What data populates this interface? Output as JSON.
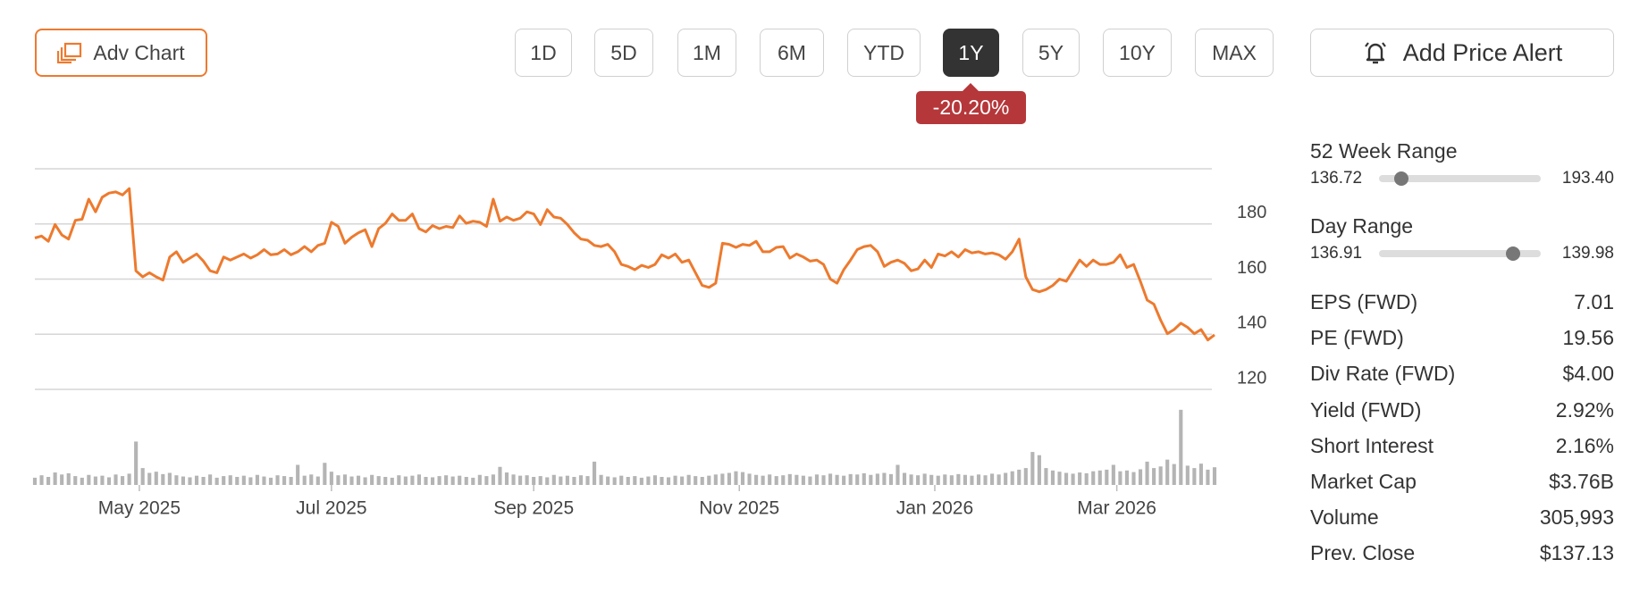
{
  "toolbar": {
    "adv_chart": "Adv Chart",
    "periods": [
      "1D",
      "5D",
      "1M",
      "6M",
      "YTD",
      "1Y",
      "5Y",
      "10Y",
      "MAX"
    ],
    "active_period": "1Y",
    "change": "-20.20%",
    "price_alert": "Add Price Alert"
  },
  "chart_data": {
    "type": "line",
    "series": [
      {
        "color": "#ed7a2e",
        "values": [
          174.9,
          175.6,
          173.7,
          179.8,
          176,
          174.5,
          181.3,
          181.7,
          189,
          184.4,
          189.7,
          191.2,
          191.6,
          190.5,
          192.8,
          163,
          160.8,
          162.3,
          160.8,
          159.6,
          168,
          169.9,
          166.1,
          167.6,
          169.1,
          166.5,
          163,
          162.3,
          168,
          166.9,
          168,
          169.1,
          167.6,
          168.8,
          170.7,
          168.8,
          169.1,
          170.7,
          168.8,
          169.9,
          171.8,
          169.9,
          172.2,
          173,
          180.6,
          179.1,
          173,
          175.2,
          176.8,
          177.9,
          171.8,
          178.3,
          180.2,
          183.6,
          181.3,
          181.3,
          183.6,
          178.3,
          177.1,
          179.4,
          178.3,
          179.1,
          178.7,
          182.9,
          180.2,
          181,
          180.6,
          179.1,
          189,
          181,
          182.5,
          181.3,
          182.1,
          184.4,
          183.6,
          179.8,
          185.2,
          182.5,
          182.1,
          179.8,
          176.8,
          174.5,
          174.1,
          172.2,
          171.8,
          172.6,
          169.9,
          165.3,
          164.6,
          163.4,
          165,
          164.2,
          165.3,
          168.8,
          167.6,
          169.1,
          166.1,
          166.9,
          162.3,
          157.7,
          157,
          158.5,
          173,
          172.6,
          171.5,
          172.6,
          172.2,
          173.7,
          169.9,
          169.9,
          171.5,
          171.8,
          167.6,
          169.1,
          168,
          166.5,
          166.9,
          165.3,
          160,
          158.5,
          163.4,
          166.9,
          170.7,
          171.8,
          172.2,
          169.9,
          164.6,
          166.1,
          166.9,
          165.7,
          163,
          163.7,
          166.9,
          164.2,
          169.1,
          168.4,
          169.9,
          168,
          170.7,
          169.5,
          169.9,
          169.1,
          169.5,
          168.8,
          167.2,
          169.9,
          174.5,
          160.8,
          156.2,
          155.4,
          156.2,
          157.7,
          160,
          159.2,
          163,
          166.9,
          164.6,
          166.9,
          165.3,
          165.3,
          166.1,
          168.8,
          164.2,
          165.3,
          159.2,
          152.4,
          150.9,
          145.1,
          140.2,
          141.7,
          144,
          142.5,
          140.2,
          141.7,
          137.9,
          139.8
        ]
      },
      {
        "color": "#b4b4b4",
        "axis": "y2",
        "values": [
          180000,
          240000,
          200000,
          310000,
          260000,
          290000,
          220000,
          180000,
          250000,
          210000,
          230000,
          190000,
          260000,
          220000,
          280000,
          1080000,
          420000,
          300000,
          330000,
          270000,
          300000,
          240000,
          210000,
          190000,
          230000,
          200000,
          260000,
          180000,
          220000,
          240000,
          200000,
          230000,
          190000,
          250000,
          210000,
          180000,
          240000,
          220000,
          200000,
          500000,
          230000,
          260000,
          210000,
          550000,
          330000,
          240000,
          260000,
          210000,
          230000,
          190000,
          250000,
          220000,
          200000,
          180000,
          240000,
          210000,
          230000,
          260000,
          200000,
          190000,
          220000,
          240000,
          210000,
          230000,
          200000,
          180000,
          250000,
          220000,
          260000,
          450000,
          310000,
          260000,
          230000,
          240000,
          200000,
          220000,
          190000,
          250000,
          210000,
          230000,
          200000,
          240000,
          220000,
          580000,
          250000,
          210000,
          190000,
          230000,
          200000,
          220000,
          180000,
          210000,
          240000,
          200000,
          190000,
          230000,
          210000,
          250000,
          220000,
          200000,
          230000,
          260000,
          280000,
          300000,
          340000,
          320000,
          280000,
          250000,
          230000,
          260000,
          220000,
          240000,
          270000,
          250000,
          230000,
          210000,
          260000,
          240000,
          280000,
          250000,
          230000,
          270000,
          260000,
          290000,
          250000,
          280000,
          300000,
          270000,
          500000,
          300000,
          260000,
          240000,
          280000,
          250000,
          230000,
          260000,
          240000,
          270000,
          250000,
          230000,
          260000,
          240000,
          280000,
          260000,
          300000,
          340000,
          380000,
          420000,
          820000,
          740000,
          420000,
          360000,
          330000,
          300000,
          280000,
          310000,
          290000,
          340000,
          360000,
          380000,
          500000,
          340000,
          360000,
          320000,
          390000,
          580000,
          420000,
          460000,
          630000,
          520000,
          1870000,
          480000,
          420000,
          530000,
          380000,
          440000
        ]
      }
    ],
    "xlim": [
      0,
      175
    ],
    "xticks": [
      {
        "value": 15.5,
        "label": "May 2025"
      },
      {
        "value": 44,
        "label": "Jul 2025"
      },
      {
        "value": 74,
        "label": "Sep 2025"
      },
      {
        "value": 104.5,
        "label": "Nov 2025"
      },
      {
        "value": 133.5,
        "label": "Jan 2026"
      },
      {
        "value": 160.5,
        "label": "Mar 2026"
      }
    ],
    "ylim": [
      120,
      200
    ],
    "yticks": [
      120,
      140,
      160,
      180
    ],
    "y2lim": [
      0,
      2000000
    ],
    "grid": true
  },
  "stats": {
    "week_range": {
      "label": "52 Week Range",
      "low": 136.72,
      "high": {
        "value": 193.4,
        "label": "193.40"
      },
      "marker": 142.7
    },
    "day_range": {
      "label": "Day Range",
      "low": 136.91,
      "high": 139.98,
      "marker": 139.55
    },
    "rows": [
      {
        "label": "EPS (FWD)",
        "value": "7.01"
      },
      {
        "label": "PE (FWD)",
        "value": "19.56"
      },
      {
        "label": "Div Rate (FWD)",
        "value": "$4.00"
      },
      {
        "label": "Yield (FWD)",
        "value": "2.92%"
      },
      {
        "label": "Short Interest",
        "value": "2.16%"
      },
      {
        "label": "Market Cap",
        "value": "$3.76B"
      },
      {
        "label": "Volume",
        "value": "305,993"
      },
      {
        "label": "Prev. Close",
        "value": "$137.13"
      }
    ]
  }
}
